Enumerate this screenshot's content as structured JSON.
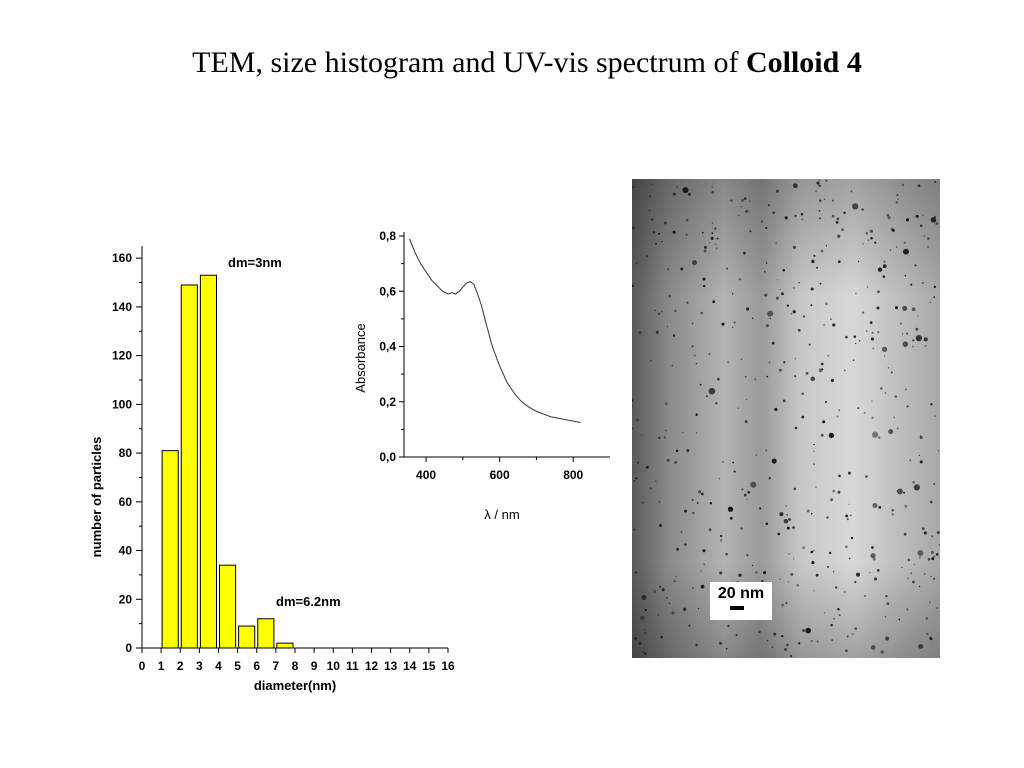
{
  "title": {
    "text": "TEM, size histogram and UV-vis spectrum of ",
    "bold": "Colloid 4"
  },
  "chart_data": [
    {
      "type": "bar",
      "categories": [
        "0",
        "1",
        "2",
        "3",
        "4",
        "5",
        "6",
        "7",
        "8",
        "9",
        "10",
        "11",
        "12",
        "13",
        "14",
        "15",
        "16"
      ],
      "values": [
        {
          "x": 1.5,
          "y": 81
        },
        {
          "x": 2.5,
          "y": 149
        },
        {
          "x": 3.5,
          "y": 153
        },
        {
          "x": 4.5,
          "y": 34
        },
        {
          "x": 5.5,
          "y": 9
        },
        {
          "x": 6.5,
          "y": 12
        },
        {
          "x": 7.5,
          "y": 2
        }
      ],
      "xlabel": "diameter(nm)",
      "ylabel": "number of particles",
      "xlim": [
        0,
        16
      ],
      "ylim": [
        0,
        165
      ],
      "yticks": [
        "0",
        "20",
        "40",
        "60",
        "80",
        "100",
        "120",
        "140",
        "160"
      ],
      "annotations": [
        "dm=3nm",
        "dm=6.2nm"
      ],
      "bar_color": "#ffff00",
      "grid": false
    },
    {
      "type": "line",
      "x": [
        355,
        370,
        385,
        400,
        415,
        430,
        445,
        460,
        470,
        480,
        490,
        500,
        510,
        520,
        530,
        540,
        550,
        560,
        570,
        580,
        600,
        620,
        640,
        660,
        680,
        700,
        720,
        740,
        760,
        780,
        800,
        820
      ],
      "y": [
        0.79,
        0.74,
        0.7,
        0.67,
        0.64,
        0.62,
        0.6,
        0.59,
        0.595,
        0.59,
        0.6,
        0.615,
        0.63,
        0.635,
        0.625,
        0.59,
        0.55,
        0.5,
        0.45,
        0.4,
        0.33,
        0.27,
        0.23,
        0.2,
        0.18,
        0.165,
        0.155,
        0.145,
        0.14,
        0.135,
        0.13,
        0.125
      ],
      "xlabel": "λ / nm",
      "ylabel": "Absorbance",
      "xlim": [
        340,
        900
      ],
      "ylim": [
        0,
        0.8
      ],
      "xticks": [
        "400",
        "600",
        "800"
      ],
      "yticks": [
        "0,0",
        "0,2",
        "0,4",
        "0,6",
        "0,8"
      ],
      "grid": false
    }
  ],
  "tem_image": {
    "scale_label": "20 nm"
  }
}
